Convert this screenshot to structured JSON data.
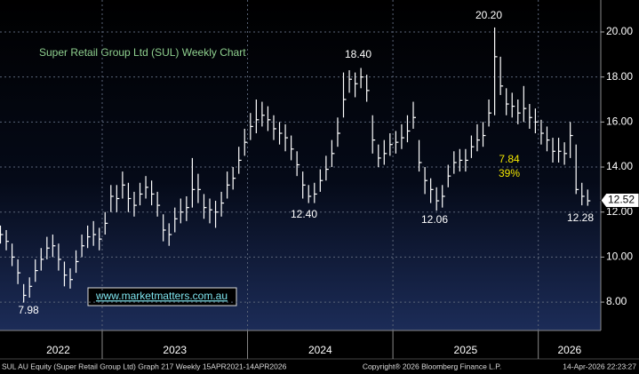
{
  "chart_data": {
    "type": "ohlc",
    "title": "Super Retail Group Ltd (SUL) Weekly Chart",
    "watermark": "www.marketmatters.com.au",
    "footer_left": "SUL AU Equity (Super Retail Group Ltd) Graph 217 Weekly 15APR2021-14APR2026",
    "footer_center": "Copyright® 2026 Bloomberg Finance L.P.",
    "footer_right": "14-Apr-2026 22:23:27",
    "annotations": [
      "7.98",
      "12.40",
      "18.40",
      "12.06",
      "20.20",
      "12.28",
      "7.84",
      "39%"
    ],
    "last_price": {
      "value": 12.52,
      "label": "12.52"
    },
    "xlim": [
      2022.297,
      2026.43
    ],
    "xticks": [
      2023,
      2024,
      2025,
      2026
    ],
    "year_labels": [
      "2022",
      "2023",
      "2024",
      "2025",
      "2026"
    ],
    "ylim": [
      6.74,
      21.42
    ],
    "yticks": [
      {
        "value": 8,
        "label": "8.00"
      },
      {
        "value": 10,
        "label": "10.00"
      },
      {
        "value": 12,
        "label": "12.00"
      },
      {
        "value": 14,
        "label": "14.00"
      },
      {
        "value": 16,
        "label": "16.00"
      },
      {
        "value": 18,
        "label": "18.00"
      },
      {
        "value": 20,
        "label": "20.00"
      }
    ],
    "grid": true,
    "color": "#ffffff",
    "x": [
      2022.3,
      2022.34,
      2022.38,
      2022.42,
      2022.46,
      2022.5,
      2022.54,
      2022.58,
      2022.62,
      2022.66,
      2022.7,
      2022.74,
      2022.78,
      2022.82,
      2022.86,
      2022.9,
      2022.94,
      2022.98,
      2023.02,
      2023.06,
      2023.1,
      2023.14,
      2023.18,
      2023.22,
      2023.26,
      2023.3,
      2023.34,
      2023.38,
      2023.42,
      2023.46,
      2023.5,
      2023.54,
      2023.58,
      2023.62,
      2023.66,
      2023.7,
      2023.74,
      2023.78,
      2023.82,
      2023.86,
      2023.9,
      2023.94,
      2023.98,
      2024.02,
      2024.06,
      2024.1,
      2024.14,
      2024.18,
      2024.22,
      2024.26,
      2024.3,
      2024.34,
      2024.38,
      2024.42,
      2024.46,
      2024.5,
      2024.54,
      2024.58,
      2024.62,
      2024.66,
      2024.7,
      2024.74,
      2024.78,
      2024.82,
      2024.86,
      2024.9,
      2024.94,
      2024.98,
      2025.02,
      2025.06,
      2025.1,
      2025.14,
      2025.18,
      2025.22,
      2025.26,
      2025.3,
      2025.34,
      2025.38,
      2025.42,
      2025.46,
      2025.5,
      2025.54,
      2025.58,
      2025.62,
      2025.66,
      2025.7,
      2025.74,
      2025.78,
      2025.82,
      2025.86,
      2025.9,
      2025.94,
      2025.98,
      2026.02,
      2026.06,
      2026.1,
      2026.14,
      2026.18,
      2026.22,
      2026.26,
      2026.3,
      2026.34
    ],
    "high": [
      11.4,
      11.2,
      10.6,
      9.9,
      8.8,
      9.1,
      9.9,
      10.4,
      10.9,
      11.0,
      10.6,
      9.8,
      9.5,
      10.3,
      11.0,
      11.4,
      11.6,
      11.3,
      12.0,
      13.2,
      13.2,
      13.8,
      13.3,
      12.9,
      13.3,
      13.6,
      13.4,
      12.9,
      11.9,
      11.5,
      12.2,
      12.6,
      12.7,
      14.4,
      13.7,
      12.8,
      12.6,
      12.5,
      12.9,
      13.8,
      14.0,
      14.9,
      15.7,
      16.4,
      17.0,
      16.9,
      16.7,
      16.3,
      16.0,
      15.9,
      15.4,
      14.7,
      13.8,
      13.2,
      13.3,
      13.9,
      14.5,
      15.2,
      16.2,
      18.2,
      18.3,
      18.2,
      18.4,
      18.1,
      16.3,
      15.0,
      15.2,
      15.5,
      15.6,
      15.9,
      16.3,
      16.9,
      15.2,
      14.0,
      13.5,
      13.1,
      13.2,
      14.1,
      14.7,
      14.8,
      14.8,
      15.4,
      15.9,
      16.0,
      17.0,
      20.2,
      18.9,
      17.5,
      17.3,
      17.0,
      17.6,
      16.8,
      16.6,
      16.1,
      15.8,
      15.3,
      15.3,
      15.1,
      16.0,
      15.0,
      13.3,
      13.0
    ],
    "low": [
      10.6,
      10.3,
      9.6,
      8.8,
      7.98,
      8.2,
      8.9,
      9.4,
      9.9,
      10.0,
      9.4,
      8.7,
      8.6,
      9.3,
      10.0,
      10.4,
      10.5,
      10.3,
      11.0,
      12.0,
      12.0,
      12.6,
      12.0,
      11.8,
      12.3,
      12.6,
      12.3,
      11.8,
      10.7,
      10.5,
      11.1,
      11.5,
      11.6,
      12.2,
      12.4,
      11.7,
      11.5,
      11.3,
      11.8,
      12.6,
      13.0,
      13.7,
      14.5,
      15.2,
      15.5,
      15.8,
      15.6,
      15.2,
      15.0,
      14.7,
      14.3,
      13.6,
      12.6,
      12.4,
      12.4,
      12.9,
      13.4,
      14.0,
      14.9,
      16.2,
      17.3,
      17.1,
      17.5,
      16.9,
      14.6,
      14.0,
      14.1,
      14.5,
      14.6,
      14.8,
      15.1,
      15.7,
      13.8,
      12.8,
      12.4,
      12.06,
      12.2,
      13.1,
      13.7,
      13.8,
      13.8,
      14.4,
      14.7,
      14.9,
      15.8,
      16.3,
      17.2,
      16.3,
      16.2,
      15.9,
      16.0,
      15.7,
      15.5,
      15.0,
      14.7,
      14.2,
      14.2,
      14.1,
      14.4,
      12.8,
      12.3,
      12.28
    ],
    "close": [
      11.0,
      10.7,
      10.0,
      9.3,
      8.3,
      8.7,
      9.4,
      9.9,
      10.4,
      10.5,
      9.9,
      9.2,
      9.0,
      9.8,
      10.5,
      10.9,
      11.0,
      10.8,
      11.5,
      12.7,
      12.6,
      13.2,
      12.6,
      12.3,
      12.8,
      13.1,
      12.8,
      12.3,
      11.2,
      11.0,
      11.7,
      12.0,
      12.2,
      13.0,
      13.0,
      12.2,
      12.1,
      12.0,
      12.4,
      13.2,
      13.5,
      14.3,
      15.1,
      15.8,
      16.1,
      16.3,
      16.1,
      15.7,
      15.5,
      15.3,
      14.8,
      14.1,
      13.2,
      12.7,
      12.8,
      13.4,
      13.9,
      14.6,
      15.5,
      17.0,
      17.9,
      17.7,
      18.0,
      17.4,
      15.2,
      14.4,
      14.6,
      15.0,
      15.1,
      15.3,
      15.6,
      16.2,
      14.2,
      13.4,
      13.0,
      12.5,
      12.7,
      13.6,
      14.2,
      14.3,
      14.3,
      14.9,
      15.2,
      15.4,
      16.4,
      18.9,
      17.6,
      16.8,
      16.7,
      16.4,
      16.6,
      16.2,
      16.0,
      15.5,
      15.2,
      14.7,
      14.7,
      14.6,
      15.4,
      13.0,
      12.7,
      12.5
    ]
  }
}
